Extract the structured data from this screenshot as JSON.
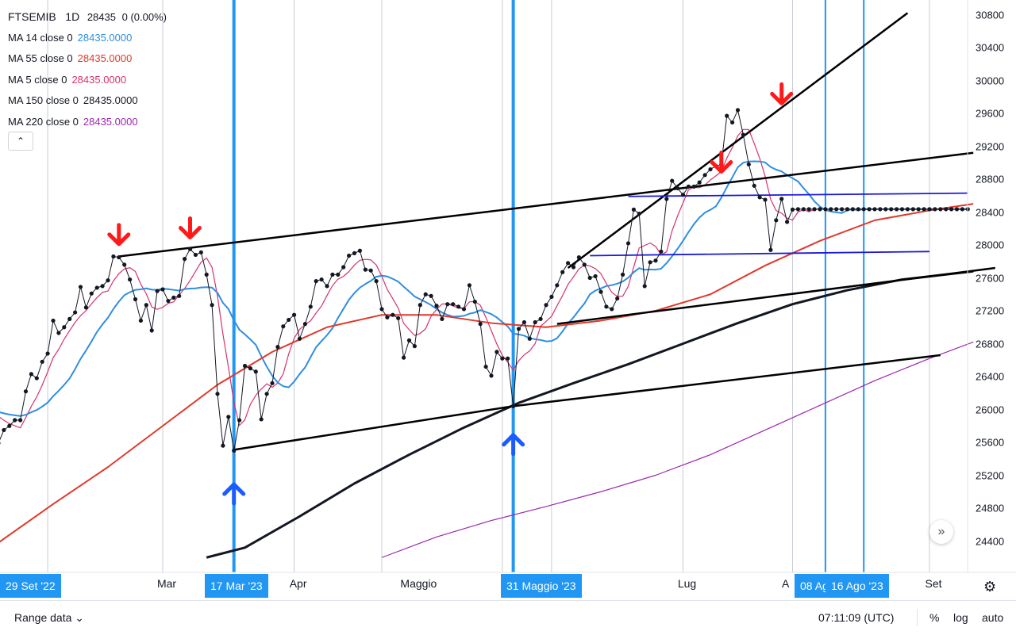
{
  "header": {
    "symbol": "FTSEMIB",
    "interval": "1D",
    "price": "28435",
    "change": "0 (0.00%)"
  },
  "indicators": [
    {
      "label": "MA 14 close 0",
      "value": "28435.0000",
      "color": "#2f8ee0"
    },
    {
      "label": "MA 55 close 0",
      "value": "28435.0000",
      "color": "#e0392b"
    },
    {
      "label": "MA 5 close 0",
      "value": "28435.0000",
      "color": "#d6336c"
    },
    {
      "label": "MA 150 close 0",
      "value": "28435.0000",
      "color": "#131722"
    },
    {
      "label": "MA 220 close 0",
      "value": "28435.0000",
      "color": "#9c27b0"
    }
  ],
  "collapse_icon": "chevron-up-icon",
  "scroll_icon": "double-chevron-right-icon",
  "bottom_bar": {
    "range_label": "Range data",
    "time": "07:11:09 (UTC)",
    "percent": "%",
    "log": "log",
    "auto": "auto"
  },
  "chart_data": {
    "type": "line",
    "y_ticks": [
      "30800",
      "30400",
      "30000",
      "29600",
      "29200",
      "28800",
      "28400",
      "28000",
      "27600",
      "27200",
      "26800",
      "26400",
      "26000",
      "25600",
      "25200",
      "24800",
      "24400"
    ],
    "ylim": [
      24200,
      30900
    ],
    "x_labels": [
      "Mar",
      "Apr",
      "Maggio",
      "Lug",
      "A",
      "Set"
    ],
    "x_badges": [
      "29 Set '22",
      "17 Mar '23",
      "31 Maggio '23",
      "08 Ag",
      "16 Ago '23"
    ],
    "series": [
      {
        "name": "FTSEMIB",
        "color": "#131722",
        "markers": true,
        "x": [
          0,
          1,
          2,
          3,
          4,
          5,
          6,
          7,
          8,
          9,
          10,
          11,
          12,
          13,
          14,
          15,
          16,
          17,
          18,
          19,
          20,
          21,
          22,
          23,
          24,
          25,
          26,
          27,
          28,
          29,
          30,
          31,
          32,
          33,
          34,
          35,
          36,
          37,
          38,
          39,
          40,
          41,
          42,
          43,
          44,
          45,
          46,
          47,
          48,
          49,
          50,
          51,
          52,
          53,
          54,
          55,
          56,
          57,
          58,
          59,
          60,
          61,
          62,
          63,
          64,
          65,
          66,
          67,
          68,
          69,
          70,
          71,
          72,
          73,
          74,
          75,
          76,
          77,
          78,
          79,
          80,
          81,
          82,
          83,
          84,
          85,
          86,
          87,
          88,
          89,
          90,
          91,
          92,
          93,
          94,
          95,
          96,
          97,
          98,
          99,
          100,
          101,
          102,
          103,
          104,
          105,
          106,
          107,
          108,
          109,
          110,
          111,
          112,
          113,
          114,
          115,
          116,
          117,
          118,
          119,
          120,
          121,
          122,
          123,
          124,
          125,
          126,
          127,
          128,
          129,
          130,
          131,
          132,
          133,
          134,
          135,
          136,
          137,
          138,
          139,
          140,
          141,
          142,
          143,
          144,
          145,
          146,
          147,
          148,
          149,
          150,
          151,
          152,
          153,
          154,
          155,
          156,
          157,
          158,
          159,
          160,
          161,
          162,
          163,
          164,
          165,
          166,
          167,
          168,
          169,
          170,
          171,
          172,
          173,
          174,
          175,
          176,
          177
        ],
        "values": [
          25590,
          25750,
          25800,
          25870,
          25870,
          26220,
          26430,
          26380,
          26580,
          26680,
          27080,
          26930,
          27000,
          27100,
          27180,
          27490,
          27240,
          27410,
          27480,
          27500,
          27570,
          27860,
          27850,
          27760,
          27580,
          27340,
          27080,
          27270,
          26960,
          27440,
          27460,
          27320,
          27360,
          27380,
          27830,
          27950,
          27880,
          27910,
          27640,
          27270,
          26190,
          25560,
          25910,
          25500,
          25870,
          26530,
          26500,
          26460,
          25880,
          26190,
          26320,
          26760,
          27010,
          27090,
          27150,
          26860,
          27040,
          27250,
          27560,
          27580,
          27500,
          27640,
          27640,
          27730,
          27870,
          27900,
          27930,
          27700,
          27690,
          27560,
          27220,
          27120,
          27150,
          27110,
          26630,
          26840,
          26770,
          27270,
          27400,
          27380,
          27260,
          27100,
          27280,
          27280,
          27250,
          27220,
          27510,
          27310,
          27040,
          26520,
          26410,
          26700,
          26620,
          26620,
          26040,
          26980,
          27060,
          26860,
          27060,
          27100,
          27270,
          27370,
          27510,
          27670,
          27780,
          27730,
          27850,
          27760,
          27600,
          27620,
          27430,
          27250,
          27220,
          27350,
          27640,
          28020,
          28430,
          28380,
          27500,
          27790,
          27810,
          27920,
          28560,
          28780,
          28690,
          28610,
          28710,
          28710,
          28760,
          28850,
          28920,
          28960,
          28980,
          29570,
          29490,
          29640,
          29340,
          28980,
          28720,
          28580,
          28550,
          27940,
          28300,
          28560,
          28280,
          28430,
          28435,
          28435,
          28435,
          28435,
          28435,
          28435,
          28435,
          28435,
          28435,
          28435,
          28435,
          28435,
          28435,
          28435,
          28435,
          28435,
          28435,
          28435,
          28435,
          28435,
          28435,
          28435,
          28435,
          28435,
          28435,
          28435,
          28435,
          28435,
          28435,
          28435,
          28435,
          28435
        ]
      },
      {
        "name": "MA 5",
        "color": "#d6336c"
      },
      {
        "name": "MA 14",
        "color": "#2f8ee0"
      },
      {
        "name": "MA 55",
        "color": "#e0392b"
      },
      {
        "name": "MA 150",
        "color": "#131722"
      },
      {
        "name": "MA 220",
        "color": "#9c27b0"
      }
    ],
    "annotations": {
      "trendlines": [
        {
          "from": [
            22,
            27860
          ],
          "to": [
            178,
            29120
          ]
        },
        {
          "from": [
            43,
            25510
          ],
          "to": [
            94,
            26040
          ]
        },
        {
          "from": [
            94,
            26040
          ],
          "to": [
            172,
            26660
          ]
        },
        {
          "from": [
            102,
            27040
          ],
          "to": [
            182,
            27720
          ]
        },
        {
          "from": [
            104,
            27720
          ],
          "to": [
            166,
            30820
          ]
        }
      ],
      "support_lines": [
        {
          "from": [
            108,
            27870
          ],
          "to": [
            170,
            27920
          ]
        },
        {
          "from": [
            115,
            28590
          ],
          "to": [
            177,
            28630
          ]
        }
      ],
      "vertical_markers": [
        43,
        94,
        151,
        158
      ],
      "down_arrows": [
        [
          22,
          28050
        ],
        [
          35,
          28130
        ],
        [
          132,
          28930
        ],
        [
          143,
          29760
        ]
      ],
      "up_arrows": [
        [
          43,
          25050
        ],
        [
          94,
          25650
        ]
      ]
    },
    "grid": true,
    "grid_lines_x": [
      9,
      30,
      54,
      70,
      92,
      101,
      125,
      145,
      170
    ]
  }
}
